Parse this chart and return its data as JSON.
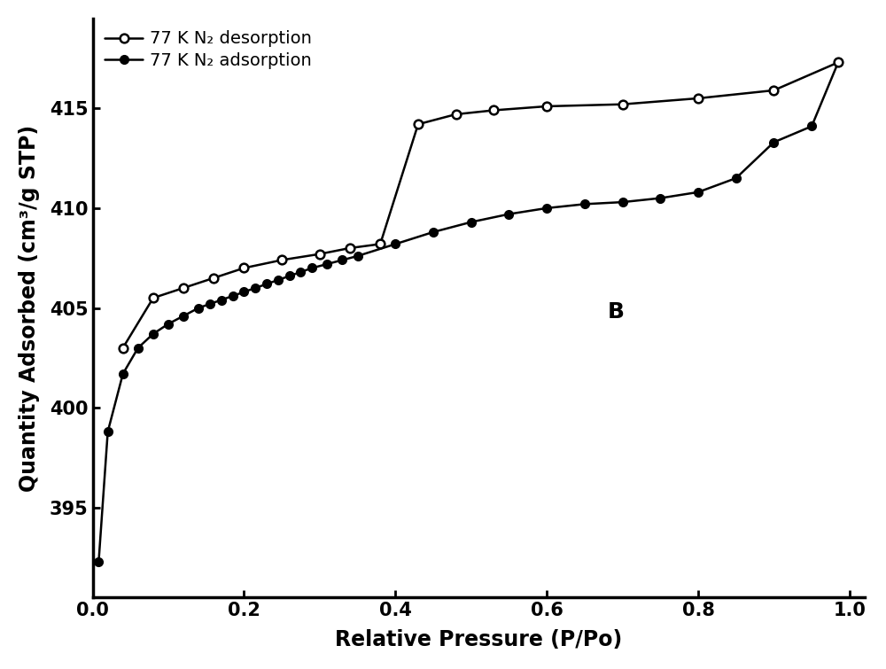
{
  "adsorption_x": [
    0.008,
    0.02,
    0.04,
    0.06,
    0.08,
    0.1,
    0.12,
    0.14,
    0.155,
    0.17,
    0.185,
    0.2,
    0.215,
    0.23,
    0.245,
    0.26,
    0.275,
    0.29,
    0.31,
    0.33,
    0.35,
    0.4,
    0.45,
    0.5,
    0.55,
    0.6,
    0.65,
    0.7,
    0.75,
    0.8,
    0.85,
    0.9,
    0.95,
    0.985
  ],
  "adsorption_y": [
    392.3,
    398.8,
    401.7,
    403.0,
    403.7,
    404.2,
    404.6,
    405.0,
    405.2,
    405.4,
    405.6,
    405.8,
    406.0,
    406.2,
    406.4,
    406.6,
    406.8,
    407.0,
    407.2,
    407.4,
    407.6,
    408.2,
    408.8,
    409.3,
    409.7,
    410.0,
    410.2,
    410.3,
    410.5,
    410.8,
    411.5,
    413.3,
    414.1,
    417.3
  ],
  "desorption_x": [
    0.04,
    0.08,
    0.12,
    0.16,
    0.2,
    0.25,
    0.3,
    0.34,
    0.38,
    0.43,
    0.48,
    0.53,
    0.6,
    0.7,
    0.8,
    0.9,
    0.985
  ],
  "desorption_y": [
    403.0,
    405.5,
    406.0,
    406.5,
    407.0,
    407.4,
    407.7,
    408.0,
    408.2,
    414.2,
    414.7,
    414.9,
    415.1,
    415.2,
    415.5,
    415.9,
    417.3
  ],
  "xlabel": "Relative Pressure (P/Po)",
  "ylabel": "Quantity Adsorbed (cm³/g STP)",
  "label_desorption": "77 K N₂ desorption",
  "label_adsorption": "77 K N₂ adsorption",
  "annotation": "B",
  "xlim": [
    0.0,
    1.02
  ],
  "ylim": [
    390.5,
    419.5
  ],
  "yticks": [
    395,
    400,
    405,
    410,
    415
  ],
  "xticks": [
    0.0,
    0.2,
    0.4,
    0.6,
    0.8,
    1.0
  ],
  "line_color": "#000000",
  "background_color": "#ffffff",
  "marker_size": 7,
  "line_width": 1.8,
  "font_size_label": 17,
  "font_size_tick": 15,
  "font_size_legend": 14,
  "font_size_annot": 18
}
